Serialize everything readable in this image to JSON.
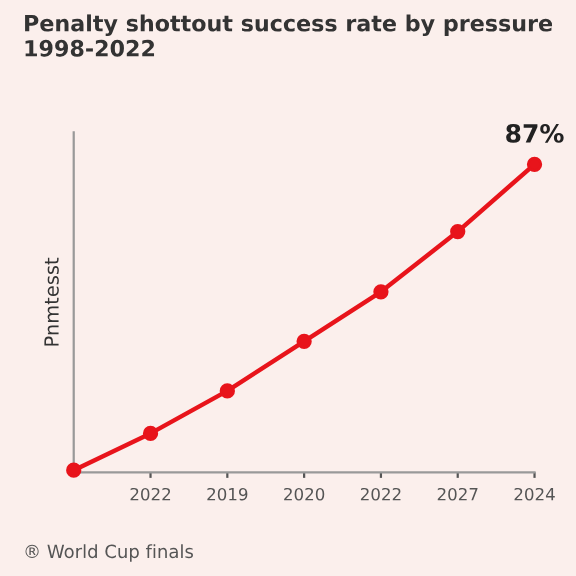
{
  "chart_data": {
    "type": "line",
    "title": "Penalty shottout success rate by pressure\n1998-2022",
    "ylabel": "Pnmtesst",
    "categories": [
      null,
      "2022",
      "2019",
      "2020",
      "2022",
      "2027",
      "2024"
    ],
    "series": [
      {
        "color": "#e8141b",
        "values": [
          0.6,
          11,
          23,
          37,
          51,
          68,
          87
        ],
        "value_labels": [
          null,
          null,
          null,
          null,
          null,
          null,
          "87%"
        ]
      }
    ],
    "ylim": [
      0,
      96
    ],
    "tick_labels": "x",
    "marker": "circle",
    "line_style": "solid",
    "annotations": [
      "® World Cup finals"
    ]
  }
}
